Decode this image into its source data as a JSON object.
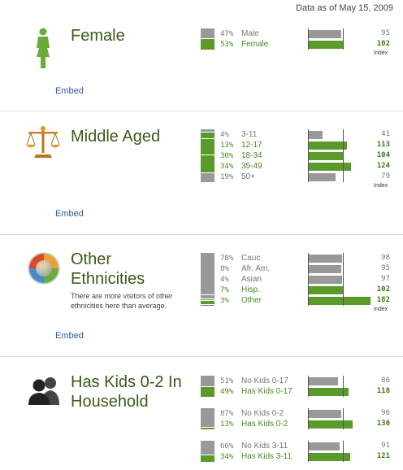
{
  "as_of": "Data as of May 15, 2009",
  "index_label": "Index",
  "embed_label": "Embed",
  "colors": {
    "gray": "#999999",
    "green": "#5a9a2a",
    "title": "#3a5a18",
    "link": "#2a5a9a"
  },
  "sections": [
    {
      "key": "gender",
      "title_lines": [
        "Female"
      ],
      "icon": "female-person-icon",
      "rows": [
        {
          "pct": "47%",
          "label": "Male",
          "share": 47,
          "index": 95,
          "highlight": false
        },
        {
          "pct": "53%",
          "label": "Female",
          "share": 53,
          "index": 102,
          "highlight": true
        }
      ]
    },
    {
      "key": "age",
      "title_lines": [
        "Middle Aged"
      ],
      "icon": "scales-icon",
      "rows": [
        {
          "pct": "4%",
          "label": "3-11",
          "share": 4,
          "index": 41,
          "highlight": false
        },
        {
          "pct": "13%",
          "label": "12-17",
          "share": 13,
          "index": 113,
          "highlight": true
        },
        {
          "pct": "30%",
          "label": "18-34",
          "share": 30,
          "index": 104,
          "highlight": true
        },
        {
          "pct": "34%",
          "label": "35-49",
          "share": 34,
          "index": 124,
          "highlight": true
        },
        {
          "pct": "19%",
          "label": "50+",
          "share": 19,
          "index": 79,
          "highlight": false
        }
      ]
    },
    {
      "key": "ethnicity",
      "title_lines": [
        "Other",
        "Ethnicities"
      ],
      "description": "There are more visitors of other ethnicities here than average.",
      "icon": "color-ball-icon",
      "rows": [
        {
          "pct": "78%",
          "label": "Cauc.",
          "share": 78,
          "index": 98,
          "highlight": false
        },
        {
          "pct": "8%",
          "label": "Afr. Am.",
          "share": 8,
          "index": 95,
          "highlight": false
        },
        {
          "pct": "4%",
          "label": "Asian",
          "share": 4,
          "index": 97,
          "highlight": false
        },
        {
          "pct": "7%",
          "label": "Hisp.",
          "share": 7,
          "index": 102,
          "highlight": true
        },
        {
          "pct": "3%",
          "label": "Other",
          "share": 3,
          "index": 182,
          "highlight": true
        }
      ]
    },
    {
      "key": "kids",
      "title_lines": [
        "Has Kids 0-2 In",
        "Household"
      ],
      "icon": "parents-icon",
      "groups": [
        [
          {
            "pct": "51%",
            "label": "No Kids 0-17",
            "share": 51,
            "index": 86,
            "highlight": false
          },
          {
            "pct": "49%",
            "label": "Has Kids 0-17",
            "share": 49,
            "index": 118,
            "highlight": true
          }
        ],
        [
          {
            "pct": "87%",
            "label": "No Kids 0-2",
            "share": 87,
            "index": 96,
            "highlight": false
          },
          {
            "pct": "13%",
            "label": "Has Kids 0-2",
            "share": 13,
            "index": 130,
            "highlight": true
          }
        ],
        [
          {
            "pct": "66%",
            "label": "No Kids 3-11",
            "share": 66,
            "index": 91,
            "highlight": false
          },
          {
            "pct": "34%",
            "label": "Has Kids 3-11",
            "share": 34,
            "index": 121,
            "highlight": true
          }
        ]
      ]
    }
  ]
}
